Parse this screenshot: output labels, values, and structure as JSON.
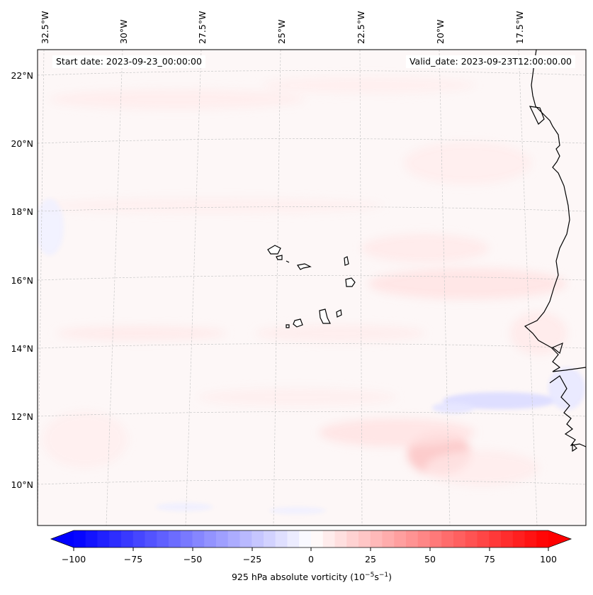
{
  "map": {
    "lon_labels": [
      "32.5°W",
      "30°W",
      "27.5°W",
      "25°W",
      "22.5°W",
      "20°W",
      "17.5°W"
    ],
    "lat_labels": [
      "22°N",
      "20°N",
      "18°N",
      "16°N",
      "14°N",
      "12°N",
      "10°N"
    ],
    "start_date_label": "Start date: 2023-09-23_00:00:00",
    "valid_date_label": "Valid_date: 2023-09-23T12:00:00.00",
    "coastline_color": "#000000"
  },
  "colorbar": {
    "ticks": [
      "−100",
      "−75",
      "−50",
      "−25",
      "0",
      "25",
      "50",
      "75",
      "100"
    ],
    "label_prefix": "925 hPa absolute vorticity (10",
    "label_exp1": "−5",
    "label_mid": "s",
    "label_exp2": "−1",
    "label_suffix": ")",
    "min_color": "#0000ff",
    "mid_color": "#ffffff",
    "max_color": "#ff0000"
  }
}
